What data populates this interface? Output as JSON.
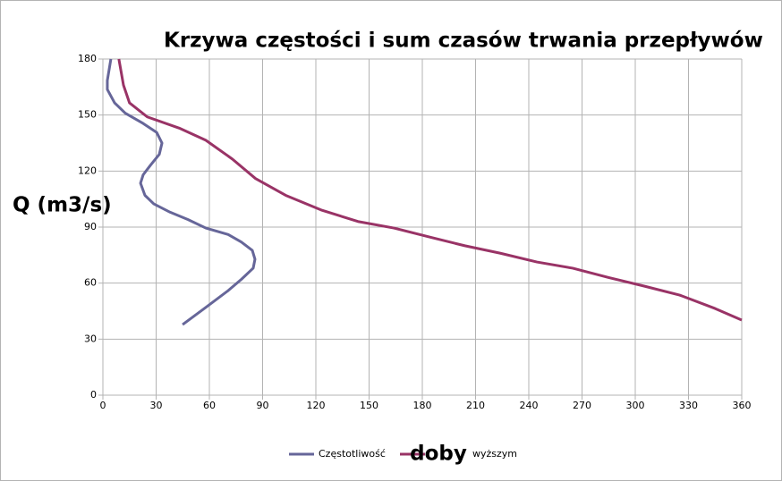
{
  "chart_data": {
    "type": "line",
    "title": "Krzywa częstości i sum czasów trwania przepływów",
    "xlabel": "doby",
    "ylabel": "Q (m3/s)",
    "xlim": [
      0,
      360
    ],
    "xticks": [
      0,
      30,
      60,
      90,
      120,
      150,
      180,
      210,
      240,
      270,
      300,
      330,
      360
    ],
    "ylim": [
      0,
      180
    ],
    "yticks": [
      0,
      30,
      60,
      90,
      120,
      150,
      180
    ],
    "grid": true,
    "legend": "bottom",
    "series": [
      {
        "name": "Częstotliwość",
        "color": "#666699",
        "x": [
          44.9,
          58,
          70.6,
          78,
          84.7,
          85.7,
          84.2,
          78,
          70.6,
          58,
          48,
          37.8,
          28.7,
          23.7,
          21.2,
          22.7,
          26.7,
          31.8,
          33.3,
          30.3,
          22.7,
          12.6,
          6.6,
          2.5,
          2.5,
          4.5
        ],
        "values": [
          37.8,
          47,
          56,
          62,
          68,
          72.8,
          77.5,
          82,
          86,
          89.5,
          94,
          98,
          102.4,
          107,
          113.5,
          118,
          123,
          129,
          135,
          140.7,
          145.5,
          151,
          156.5,
          163.7,
          168.5,
          180
        ]
      },
      {
        "name": "wyższym",
        "color": "#993366",
        "x": [
          9,
          11.6,
          15,
          25,
          43,
          58,
          73,
          86,
          103,
          123.5,
          143.7,
          164,
          184,
          204,
          224,
          244.6,
          264.7,
          285,
          305,
          325,
          345,
          360
        ],
        "values": [
          180,
          166,
          156.5,
          149,
          143,
          136.5,
          126.4,
          116,
          107,
          99,
          93,
          89.5,
          84.7,
          80,
          76,
          71.3,
          68,
          63,
          58.4,
          53.6,
          46.4,
          40.2
        ]
      }
    ]
  }
}
